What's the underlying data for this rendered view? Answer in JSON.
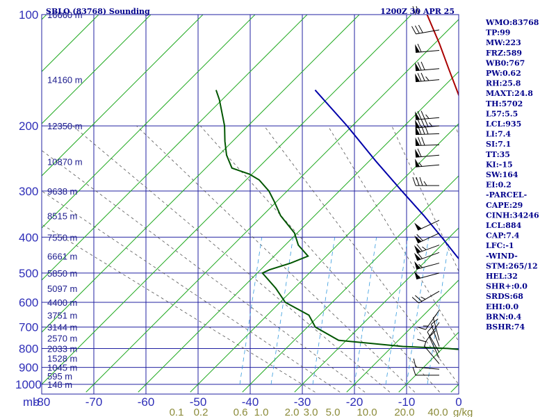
{
  "chart_data": {
    "type": "line",
    "title": "SBLO (83768) Sounding",
    "valid_time": "1200Z 30 APR 25",
    "x_axis_unit": "mb",
    "xlim": [
      -80,
      0
    ],
    "ylim": [
      1000,
      100
    ],
    "y_scale": "log",
    "pressure_ticks": [
      100,
      200,
      300,
      400,
      500,
      600,
      700,
      800,
      900,
      1000
    ],
    "temperature_ticks": [
      -80,
      -70,
      -60,
      -50,
      -40,
      -30,
      -20,
      -10,
      0,
      10,
      20,
      30,
      40
    ],
    "mixing_ratio_ticks": [
      "0.1",
      "0.2",
      "0.6",
      "1.0",
      "2.0",
      "3.0",
      "5.0",
      "10.0",
      "20.0",
      "40.0"
    ],
    "mixing_ratio_unit": "g/kg",
    "height_labels": [
      {
        "p": 100,
        "label": "16660 m"
      },
      {
        "p": 150,
        "label": "14160 m"
      },
      {
        "p": 200,
        "label": "12350 m"
      },
      {
        "p": 250,
        "label": "10870 m"
      },
      {
        "p": 300,
        "label": "9638 m"
      },
      {
        "p": 350,
        "label": "8515 m"
      },
      {
        "p": 400,
        "label": "7550 m"
      },
      {
        "p": 450,
        "label": "6661 m"
      },
      {
        "p": 500,
        "label": "5850 m"
      },
      {
        "p": 550,
        "label": "5097 m"
      },
      {
        "p": 600,
        "label": "4400 m"
      },
      {
        "p": 650,
        "label": "3751 m"
      },
      {
        "p": 700,
        "label": "3144 m"
      },
      {
        "p": 750,
        "label": "2570 m"
      },
      {
        "p": 800,
        "label": "2033 m"
      },
      {
        "p": 850,
        "label": "1528 m"
      },
      {
        "p": 900,
        "label": "1045 m"
      },
      {
        "p": 950,
        "label": "595 m"
      },
      {
        "p": 1000,
        "label": "148 m"
      }
    ],
    "series": [
      {
        "name": "",
        "color": "#aa0000",
        "points": [
          [
            945,
            9.5
          ],
          [
            910,
            11.8
          ],
          [
            890,
            12.5
          ],
          [
            860,
            11.3
          ],
          [
            840,
            11.6
          ],
          [
            820,
            12.3
          ],
          [
            780,
            11.5
          ],
          [
            720,
            9.8
          ],
          [
            700,
            8.8
          ],
          [
            660,
            6.9
          ],
          [
            620,
            4.0
          ],
          [
            580,
            0.5
          ],
          [
            540,
            -1.9
          ],
          [
            500,
            -5.0
          ],
          [
            460,
            -8.0
          ],
          [
            420,
            -11.2
          ],
          [
            380,
            -15.0
          ],
          [
            340,
            -20.0
          ],
          [
            300,
            -26.0
          ],
          [
            265,
            -31.0
          ],
          [
            255,
            -32.0
          ],
          [
            250,
            -33.0
          ],
          [
            235,
            -36.5
          ],
          [
            205,
            -44.5
          ],
          [
            190,
            -49.0
          ],
          [
            165,
            -55.5
          ],
          [
            140,
            -62.5
          ],
          [
            120,
            -69.0
          ],
          [
            100,
            -77.0
          ]
        ]
      },
      {
        "name": "",
        "color": "#005500",
        "points": [
          [
            945,
            9.0
          ],
          [
            910,
            10.8
          ],
          [
            890,
            11.2
          ],
          [
            850,
            10.5
          ],
          [
            820,
            11.3
          ],
          [
            815,
            7.5
          ],
          [
            810,
            -4.0
          ],
          [
            800,
            -9.0
          ],
          [
            790,
            -18.0
          ],
          [
            760,
            -31.5
          ],
          [
            700,
            -38.5
          ],
          [
            650,
            -42.0
          ],
          [
            600,
            -49.0
          ],
          [
            550,
            -53.5
          ],
          [
            500,
            -59.0
          ],
          [
            490,
            -58.3
          ],
          [
            470,
            -55.5
          ],
          [
            450,
            -53.5
          ],
          [
            420,
            -57.5
          ],
          [
            390,
            -60.5
          ],
          [
            350,
            -66.5
          ],
          [
            320,
            -70.5
          ],
          [
            300,
            -73.5
          ],
          [
            280,
            -77.5
          ],
          [
            270,
            -80.5
          ],
          [
            260,
            -85.0
          ],
          [
            240,
            -88.5
          ],
          [
            220,
            -91.5
          ],
          [
            200,
            -94.5
          ],
          [
            170,
            -100.5
          ],
          [
            160,
            -103.0
          ]
        ]
      },
      {
        "name": "",
        "color": "#0000aa",
        "points": [
          [
            950,
            14.5
          ],
          [
            900,
            12.0
          ],
          [
            850,
            9.0
          ],
          [
            800,
            6.5
          ],
          [
            750,
            3.0
          ],
          [
            700,
            -0.5
          ],
          [
            650,
            -4.5
          ],
          [
            600,
            -9.0
          ],
          [
            550,
            -14.0
          ],
          [
            500,
            -19.0
          ],
          [
            450,
            -25.0
          ],
          [
            400,
            -31.5
          ],
          [
            350,
            -39.0
          ],
          [
            300,
            -48.0
          ],
          [
            250,
            -58.5
          ],
          [
            200,
            -71.0
          ],
          [
            160,
            -84.0
          ]
        ]
      }
    ],
    "wind_barbs": [
      {
        "p": 100,
        "dir": 270,
        "spd": 20
      },
      {
        "p": 110,
        "dir": 260,
        "spd": 30
      },
      {
        "p": 125,
        "dir": 265,
        "spd": 60
      },
      {
        "p": 140,
        "dir": 265,
        "spd": 70
      },
      {
        "p": 150,
        "dir": 265,
        "spd": 75
      },
      {
        "p": 190,
        "dir": 265,
        "spd": 75
      },
      {
        "p": 200,
        "dir": 265,
        "spd": 85
      },
      {
        "p": 210,
        "dir": 268,
        "spd": 80
      },
      {
        "p": 225,
        "dir": 268,
        "spd": 70
      },
      {
        "p": 240,
        "dir": 265,
        "spd": 60
      },
      {
        "p": 255,
        "dir": 265,
        "spd": 55
      },
      {
        "p": 290,
        "dir": 270,
        "spd": 35
      },
      {
        "p": 360,
        "dir": 245,
        "spd": 50
      },
      {
        "p": 390,
        "dir": 245,
        "spd": 60
      },
      {
        "p": 420,
        "dir": 250,
        "spd": 65
      },
      {
        "p": 440,
        "dir": 250,
        "spd": 60
      },
      {
        "p": 470,
        "dir": 255,
        "spd": 55
      },
      {
        "p": 500,
        "dir": 255,
        "spd": 50
      },
      {
        "p": 560,
        "dir": 240,
        "spd": 25
      },
      {
        "p": 630,
        "dir": 215,
        "spd": 15
      },
      {
        "p": 680,
        "dir": 215,
        "spd": 10
      },
      {
        "p": 760,
        "dir": 345,
        "spd": 5
      },
      {
        "p": 790,
        "dir": 340,
        "spd": 10
      },
      {
        "p": 820,
        "dir": 330,
        "spd": 10
      },
      {
        "p": 850,
        "dir": 335,
        "spd": 10
      },
      {
        "p": 880,
        "dir": 320,
        "spd": 5
      },
      {
        "p": 910,
        "dir": 275,
        "spd": 10
      },
      {
        "p": 945,
        "dir": 270,
        "spd": 10
      }
    ]
  },
  "indices": [
    "WMO:83768",
    "TP:99",
    "MW:223",
    "FRZ:589",
    "WB0:767",
    "PW:0.62",
    "RH:25.8",
    "MAXT:24.8",
    "TH:5702",
    "L57:5.5",
    "LCL:935",
    "LI:7.4",
    "SI:7.1",
    "TT:35",
    "KI:-15",
    "SW:164",
    "EI:0.2",
    "-PARCEL-",
    "CAPE:29",
    "CINH:34246",
    "LCL:884",
    "CAP:7.4",
    "LFC:-1",
    "-WIND-",
    "STM:265/12",
    "HEL:32",
    "SHR+:0.0",
    "SRDS:68",
    "EHI:0.0",
    "BRN:0.4",
    "BSHR:74"
  ],
  "colors": {
    "grid": "#2020a0",
    "dry_adiabat": "#22aa22",
    "moist_adiabat": "#555555",
    "mixing_ratio": "#3399dd",
    "temperature": "#aa0000",
    "dewpoint": "#005500",
    "parcel": "#0000aa",
    "barb": "#000000"
  }
}
